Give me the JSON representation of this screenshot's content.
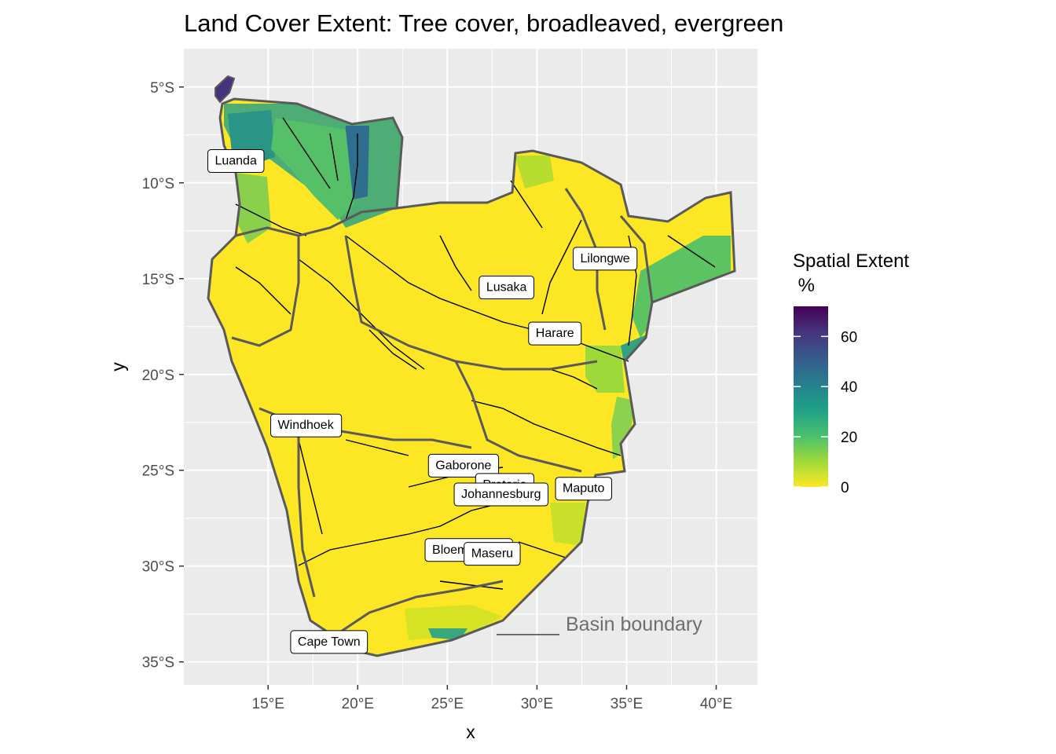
{
  "title": "Land Cover Extent: Tree cover, broadleaved, evergreen",
  "axes": {
    "x_label": "x",
    "y_label": "y",
    "x_ticks": [
      {
        "lon": 15,
        "label": "15°E"
      },
      {
        "lon": 20,
        "label": "20°E"
      },
      {
        "lon": 25,
        "label": "25°E"
      },
      {
        "lon": 30,
        "label": "30°E"
      },
      {
        "lon": 35,
        "label": "35°E"
      },
      {
        "lon": 40,
        "label": "40°E"
      }
    ],
    "y_ticks": [
      {
        "lat": -5,
        "label": "5°S"
      },
      {
        "lat": -10,
        "label": "10°S"
      },
      {
        "lat": -15,
        "label": "15°S"
      },
      {
        "lat": -20,
        "label": "20°S"
      },
      {
        "lat": -25,
        "label": "25°S"
      },
      {
        "lat": -30,
        "label": "30°S"
      },
      {
        "lat": -35,
        "label": "35°S"
      }
    ],
    "lon_range": [
      10.3,
      42.3
    ],
    "lat_range": [
      -36.2,
      -3.0
    ]
  },
  "legend": {
    "title_line1": "Spatial Extent",
    "title_line2": " %",
    "ticks": [
      {
        "value": 0,
        "label": "0"
      },
      {
        "value": 20,
        "label": "20"
      },
      {
        "value": 40,
        "label": "40"
      },
      {
        "value": 60,
        "label": "60"
      }
    ],
    "range": [
      0,
      72
    ],
    "palette": [
      "#fde725",
      "#a0da39",
      "#4ac16d",
      "#1fa187",
      "#277f8e",
      "#365c8d",
      "#46327e",
      "#440154"
    ]
  },
  "annotation": {
    "label": "Basin boundary"
  },
  "cities": [
    {
      "name": "Luanda",
      "lon": 13.2,
      "lat": -8.8
    },
    {
      "name": "Lilongwe",
      "lon": 33.8,
      "lat": -13.9
    },
    {
      "name": "Lusaka",
      "lon": 28.3,
      "lat": -15.4
    },
    {
      "name": "Harare",
      "lon": 31.0,
      "lat": -17.8
    },
    {
      "name": "Windhoek",
      "lon": 17.1,
      "lat": -22.6
    },
    {
      "name": "Gaborone",
      "lon": 25.9,
      "lat": -24.7
    },
    {
      "name": "Pretoria",
      "lon": 28.2,
      "lat": -25.7
    },
    {
      "name": "Maputo",
      "lon": 32.6,
      "lat": -25.9
    },
    {
      "name": "Johannesburg",
      "lon": 28.0,
      "lat": -26.2
    },
    {
      "name": "Bloemfontein",
      "lon": 26.2,
      "lat": -29.1
    },
    {
      "name": "Maseru",
      "lon": 27.5,
      "lat": -29.3
    },
    {
      "name": "Cape Town",
      "lon": 18.4,
      "lat": -33.9
    }
  ],
  "colors": {
    "panel_bg": "#ebebeb",
    "grid": "#ffffff",
    "land_low": "#fde725",
    "basin_boundary": "#5a5a5a",
    "rivers": "#000000"
  }
}
